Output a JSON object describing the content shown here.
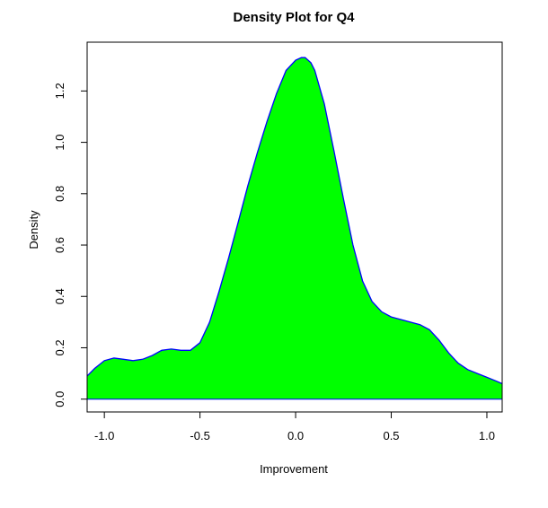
{
  "chart_data": {
    "type": "area",
    "title": "Density Plot for Q4",
    "xlabel": "Improvement",
    "ylabel": "Density",
    "xlim": [
      -1.09,
      1.08
    ],
    "ylim": [
      -0.05,
      1.39
    ],
    "x_ticks": [
      -1.0,
      -0.5,
      0.0,
      0.5,
      1.0
    ],
    "x_tick_labels": [
      "-1.0",
      "-0.5",
      "0.0",
      "0.5",
      "1.0"
    ],
    "y_ticks": [
      0.0,
      0.2,
      0.4,
      0.6,
      0.8,
      1.0,
      1.2
    ],
    "y_tick_labels": [
      "0.0",
      "0.2",
      "0.4",
      "0.6",
      "0.8",
      "1.0",
      "1.2"
    ],
    "grid": false,
    "fill_color": "#00ff00",
    "line_color": "#0000ff",
    "series": [
      {
        "x": [
          -1.09,
          -1.05,
          -1.0,
          -0.95,
          -0.9,
          -0.85,
          -0.8,
          -0.75,
          -0.7,
          -0.65,
          -0.6,
          -0.55,
          -0.5,
          -0.45,
          -0.4,
          -0.35,
          -0.3,
          -0.25,
          -0.2,
          -0.15,
          -0.1,
          -0.05,
          0.0,
          0.03,
          0.05,
          0.08,
          0.1,
          0.15,
          0.2,
          0.25,
          0.3,
          0.35,
          0.4,
          0.45,
          0.5,
          0.55,
          0.6,
          0.65,
          0.7,
          0.75,
          0.8,
          0.85,
          0.9,
          0.95,
          1.0,
          1.05,
          1.08
        ],
        "y": [
          0.09,
          0.12,
          0.15,
          0.16,
          0.155,
          0.15,
          0.155,
          0.17,
          0.19,
          0.195,
          0.19,
          0.19,
          0.22,
          0.3,
          0.42,
          0.55,
          0.69,
          0.83,
          0.96,
          1.08,
          1.19,
          1.28,
          1.32,
          1.33,
          1.33,
          1.31,
          1.28,
          1.15,
          0.97,
          0.78,
          0.6,
          0.46,
          0.38,
          0.34,
          0.32,
          0.31,
          0.3,
          0.29,
          0.27,
          0.23,
          0.18,
          0.14,
          0.115,
          0.1,
          0.085,
          0.07,
          0.06
        ]
      }
    ]
  }
}
